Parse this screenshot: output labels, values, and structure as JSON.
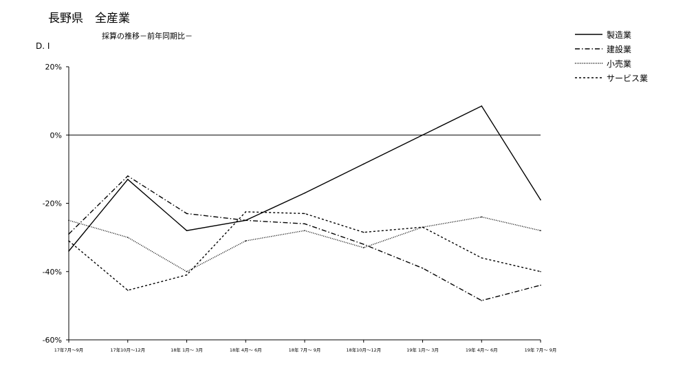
{
  "chart_data": {
    "type": "line",
    "title": "長野県　全産業",
    "subtitle": "採算の推移－前年同期比－",
    "ylabel": "D. I",
    "xlabel": "",
    "categories": [
      "17年7月～9月",
      "17年10月～12月",
      "18年 1月～ 3月",
      "18年 4月～ 6月",
      "18年 7月～ 9月",
      "18年10月～12月",
      "19年 1月～ 3月",
      "19年 4月～ 6月",
      "19年 7月～ 9月"
    ],
    "ylim": [
      -60,
      20
    ],
    "yticks": [
      20,
      0,
      -20,
      -40,
      -60
    ],
    "ytick_labels": [
      "20%",
      "0%",
      "-20%",
      "-40%",
      "-60%"
    ],
    "grid": false,
    "legend_position": "top-right",
    "series": [
      {
        "name": "製造業",
        "values": [
          -34,
          -13,
          -28,
          -25,
          -17,
          -8.5,
          0,
          8.5,
          -19
        ],
        "dash": "solid"
      },
      {
        "name": "建設業",
        "values": [
          -29,
          -12,
          -23,
          -25,
          -26,
          -32,
          -39,
          -48.5,
          -44
        ],
        "dash": "dashdot"
      },
      {
        "name": "小売業",
        "values": [
          -25,
          -30,
          -40,
          -31,
          -28,
          -33,
          -27,
          -24,
          -28
        ],
        "dash": "dotted"
      },
      {
        "name": "サービス業",
        "values": [
          -31,
          -45.5,
          -41,
          -22.5,
          -23,
          -28.5,
          -27,
          -36,
          -40
        ],
        "dash": "dashed"
      }
    ],
    "reference_line": 0,
    "colors": {
      "line": "#000000",
      "background": "#ffffff"
    }
  }
}
